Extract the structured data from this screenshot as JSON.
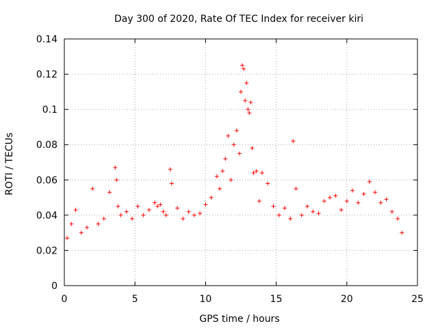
{
  "chart_data": {
    "type": "scatter",
    "title": "Day 300 of 2020, Rate Of TEC Index for receiver kiri",
    "xlabel": "GPS time / hours",
    "ylabel": "ROTI / TECUs",
    "xlim": [
      0,
      25
    ],
    "ylim": [
      0,
      0.14
    ],
    "x_ticks": [
      0,
      5,
      10,
      15,
      20,
      25
    ],
    "x_tick_labels": [
      "0",
      "5",
      "10",
      "15",
      "20",
      "25"
    ],
    "y_ticks": [
      0,
      0.02,
      0.04,
      0.06,
      0.08,
      0.1,
      0.12,
      0.14
    ],
    "y_tick_labels": [
      "0",
      "0.02",
      "0.04",
      "0.06",
      "0.08",
      "0.1",
      "0.12",
      "0.14"
    ],
    "grid": true,
    "marker": "+",
    "color": "#ff0000",
    "series": [
      {
        "x": [
          0.2,
          0.5,
          0.8,
          1.2,
          1.6,
          2.0,
          2.4,
          2.8,
          3.2,
          3.6,
          3.7,
          3.8,
          4.0,
          4.4,
          4.8,
          5.2,
          5.6,
          6.0,
          6.4,
          6.6,
          6.8,
          7.0,
          7.2,
          7.5,
          7.6,
          8.0,
          8.4,
          8.8,
          9.2,
          9.6,
          10.0,
          10.4,
          10.8,
          11.0,
          11.2,
          11.4,
          11.6,
          11.8,
          12.0,
          12.2,
          12.4,
          12.5,
          12.6,
          12.7,
          12.8,
          12.9,
          13.0,
          13.1,
          13.2,
          13.3,
          13.4,
          13.6,
          13.8,
          14.0,
          14.4,
          14.8,
          15.2,
          15.6,
          16.0,
          16.2,
          16.4,
          16.8,
          17.2,
          17.6,
          18.0,
          18.4,
          18.8,
          19.2,
          19.6,
          20.0,
          20.4,
          20.8,
          21.2,
          21.6,
          22.0,
          22.4,
          22.8,
          23.2,
          23.6,
          23.9
        ],
        "y": [
          0.027,
          0.035,
          0.043,
          0.03,
          0.033,
          0.055,
          0.035,
          0.038,
          0.053,
          0.067,
          0.06,
          0.045,
          0.04,
          0.042,
          0.038,
          0.045,
          0.04,
          0.043,
          0.047,
          0.045,
          0.046,
          0.042,
          0.04,
          0.066,
          0.058,
          0.044,
          0.038,
          0.042,
          0.04,
          0.041,
          0.046,
          0.05,
          0.062,
          0.055,
          0.065,
          0.072,
          0.085,
          0.06,
          0.08,
          0.088,
          0.075,
          0.11,
          0.125,
          0.123,
          0.105,
          0.115,
          0.1,
          0.098,
          0.104,
          0.078,
          0.064,
          0.065,
          0.048,
          0.064,
          0.058,
          0.045,
          0.04,
          0.044,
          0.038,
          0.082,
          0.055,
          0.04,
          0.045,
          0.042,
          0.041,
          0.048,
          0.05,
          0.051,
          0.043,
          0.048,
          0.054,
          0.047,
          0.052,
          0.059,
          0.053,
          0.047,
          0.049,
          0.042,
          0.038,
          0.03
        ]
      }
    ]
  }
}
